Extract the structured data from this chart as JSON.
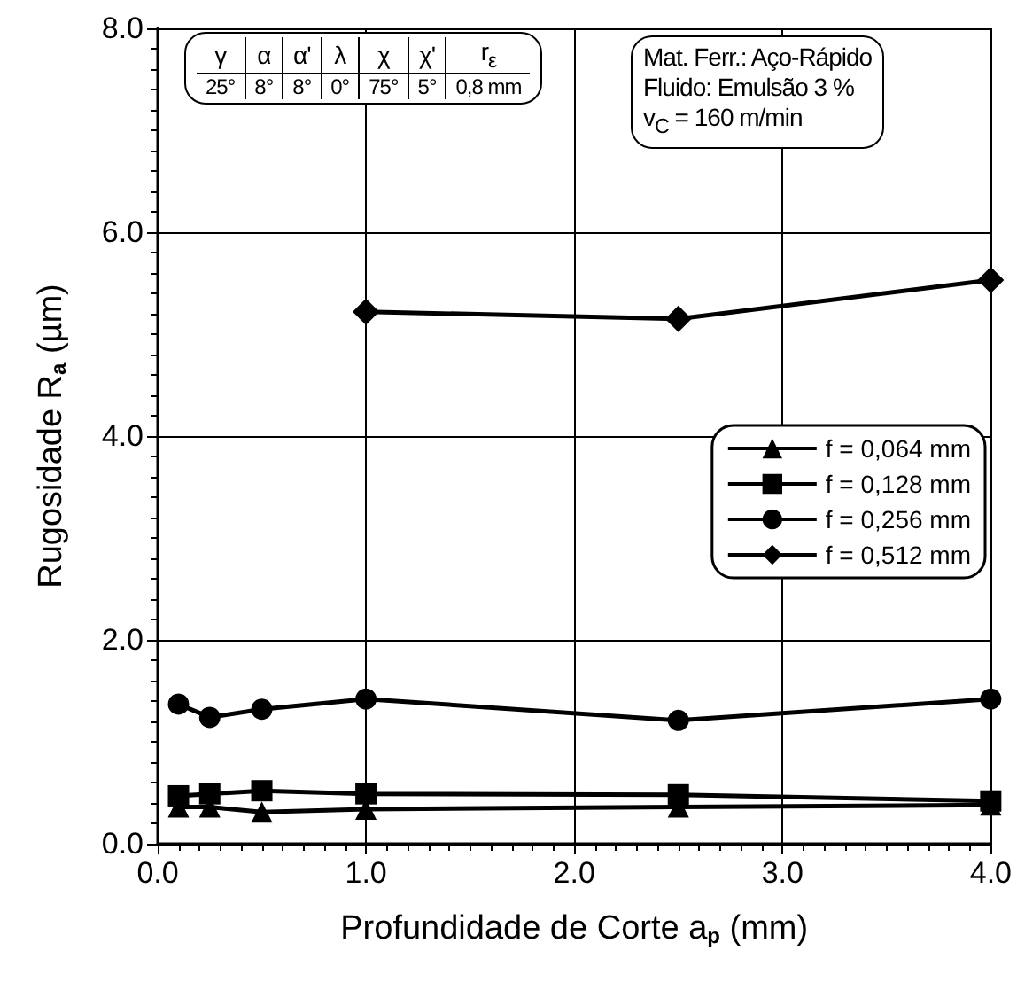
{
  "chart_data": {
    "type": "line",
    "xlabel": "Profundidade de Corte a$_{p}$ (mm)",
    "ylabel": "Rugosidade R$_{a}$ (µm)",
    "xlim": [
      0,
      4
    ],
    "xticks": [
      {
        "value": 0,
        "label": "0.0"
      },
      {
        "value": 1,
        "label": "1.0"
      },
      {
        "value": 2,
        "label": "2.0"
      },
      {
        "value": 3,
        "label": "3.0"
      },
      {
        "value": 4,
        "label": "4.0"
      }
    ],
    "ylim": [
      0,
      8
    ],
    "yticks": [
      {
        "value": 0,
        "label": "0.0"
      },
      {
        "value": 2,
        "label": "2.0"
      },
      {
        "value": 4,
        "label": "4.0"
      },
      {
        "value": 6,
        "label": "6.0"
      },
      {
        "value": 8,
        "label": "8.0"
      }
    ],
    "grid": true,
    "legend": "right",
    "line_style": "solid",
    "series": [
      {
        "name": "f = 0,064 mm",
        "color": "#000000",
        "marker": "triangle",
        "x": [
          0.1,
          0.25,
          0.5,
          1,
          2.5,
          4
        ],
        "values": [
          0.36,
          0.36,
          0.31,
          0.34,
          0.36,
          0.38
        ]
      },
      {
        "name": "f = 0,128 mm",
        "color": "#000000",
        "marker": "square",
        "x": [
          0.1,
          0.25,
          0.5,
          1,
          2.5,
          4
        ],
        "values": [
          0.47,
          0.49,
          0.52,
          0.49,
          0.48,
          0.42
        ]
      },
      {
        "name": "f = 0,256 mm",
        "color": "#000000",
        "marker": "circle",
        "x": [
          0.1,
          0.25,
          0.5,
          1,
          2.5,
          4
        ],
        "values": [
          1.37,
          1.24,
          1.32,
          1.42,
          1.21,
          1.42
        ]
      },
      {
        "name": "f = 0,512 mm",
        "color": "#000000",
        "marker": "diamond",
        "x": [
          1,
          2.5,
          4
        ],
        "values": [
          5.22,
          5.15,
          5.53
        ]
      }
    ],
    "annotations": [
      "γ",
      "α",
      "α'",
      "λ",
      "χ",
      "χ'",
      "r$_{ε}$",
      "25°",
      "8°",
      "8°",
      "0°",
      "75°",
      "5°",
      "0,8 mm",
      "Mat. Ferr.: Aço-Rápido",
      "Fluido: Emulsão 3 %",
      "v$_{C}$ = 160 m/min"
    ]
  }
}
